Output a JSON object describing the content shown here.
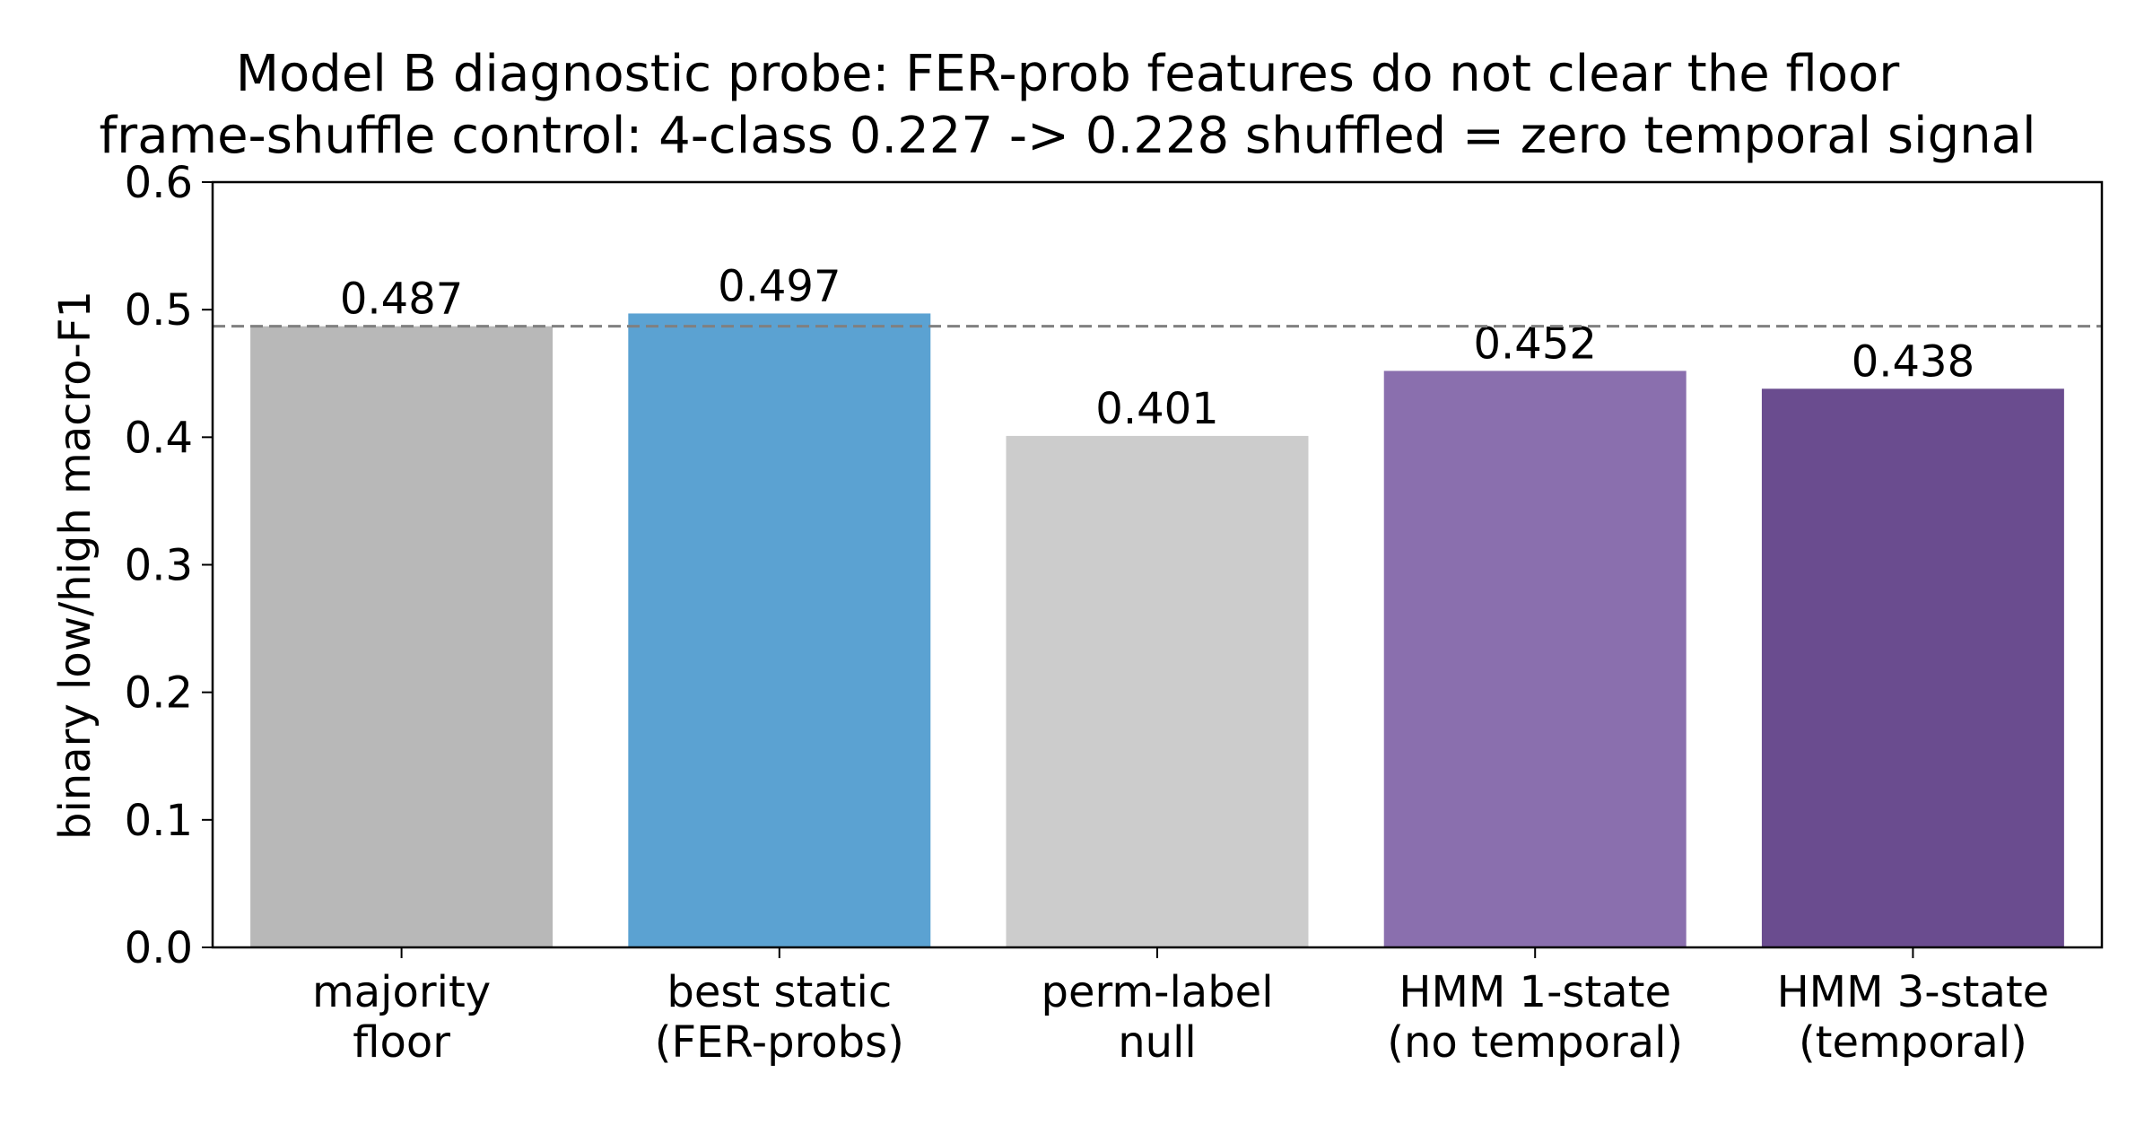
{
  "chart_data": {
    "type": "bar",
    "title": "Model B diagnostic probe: FER-prob features do not clear the floor",
    "subtitle": "frame-shuffle control: 4-class 0.227 -> 0.228 shuffled = zero temporal signal",
    "xlabel": "",
    "ylabel": "binary low/high macro-F1",
    "ylim": [
      0,
      0.6
    ],
    "yticks": [
      "0.0",
      "0.1",
      "0.2",
      "0.3",
      "0.4",
      "0.5",
      "0.6"
    ],
    "categories": [
      [
        "majority",
        "floor"
      ],
      [
        "best static",
        "(FER-probs)"
      ],
      [
        "perm-label",
        "null"
      ],
      [
        "HMM 1-state",
        "(no temporal)"
      ],
      [
        "HMM 3-state",
        "(temporal)"
      ]
    ],
    "values": [
      0.487,
      0.497,
      0.401,
      0.452,
      0.438
    ],
    "value_labels": [
      "0.487",
      "0.497",
      "0.401",
      "0.452",
      "0.438"
    ],
    "bar_colors": [
      "#b8b8b8",
      "#5ba2d2",
      "#cccccc",
      "#8a6fae",
      "#6a4c8f"
    ],
    "reference_line": {
      "value": 0.487,
      "style": "dashed",
      "color": "#808080"
    },
    "grid": false,
    "legend": "none"
  }
}
